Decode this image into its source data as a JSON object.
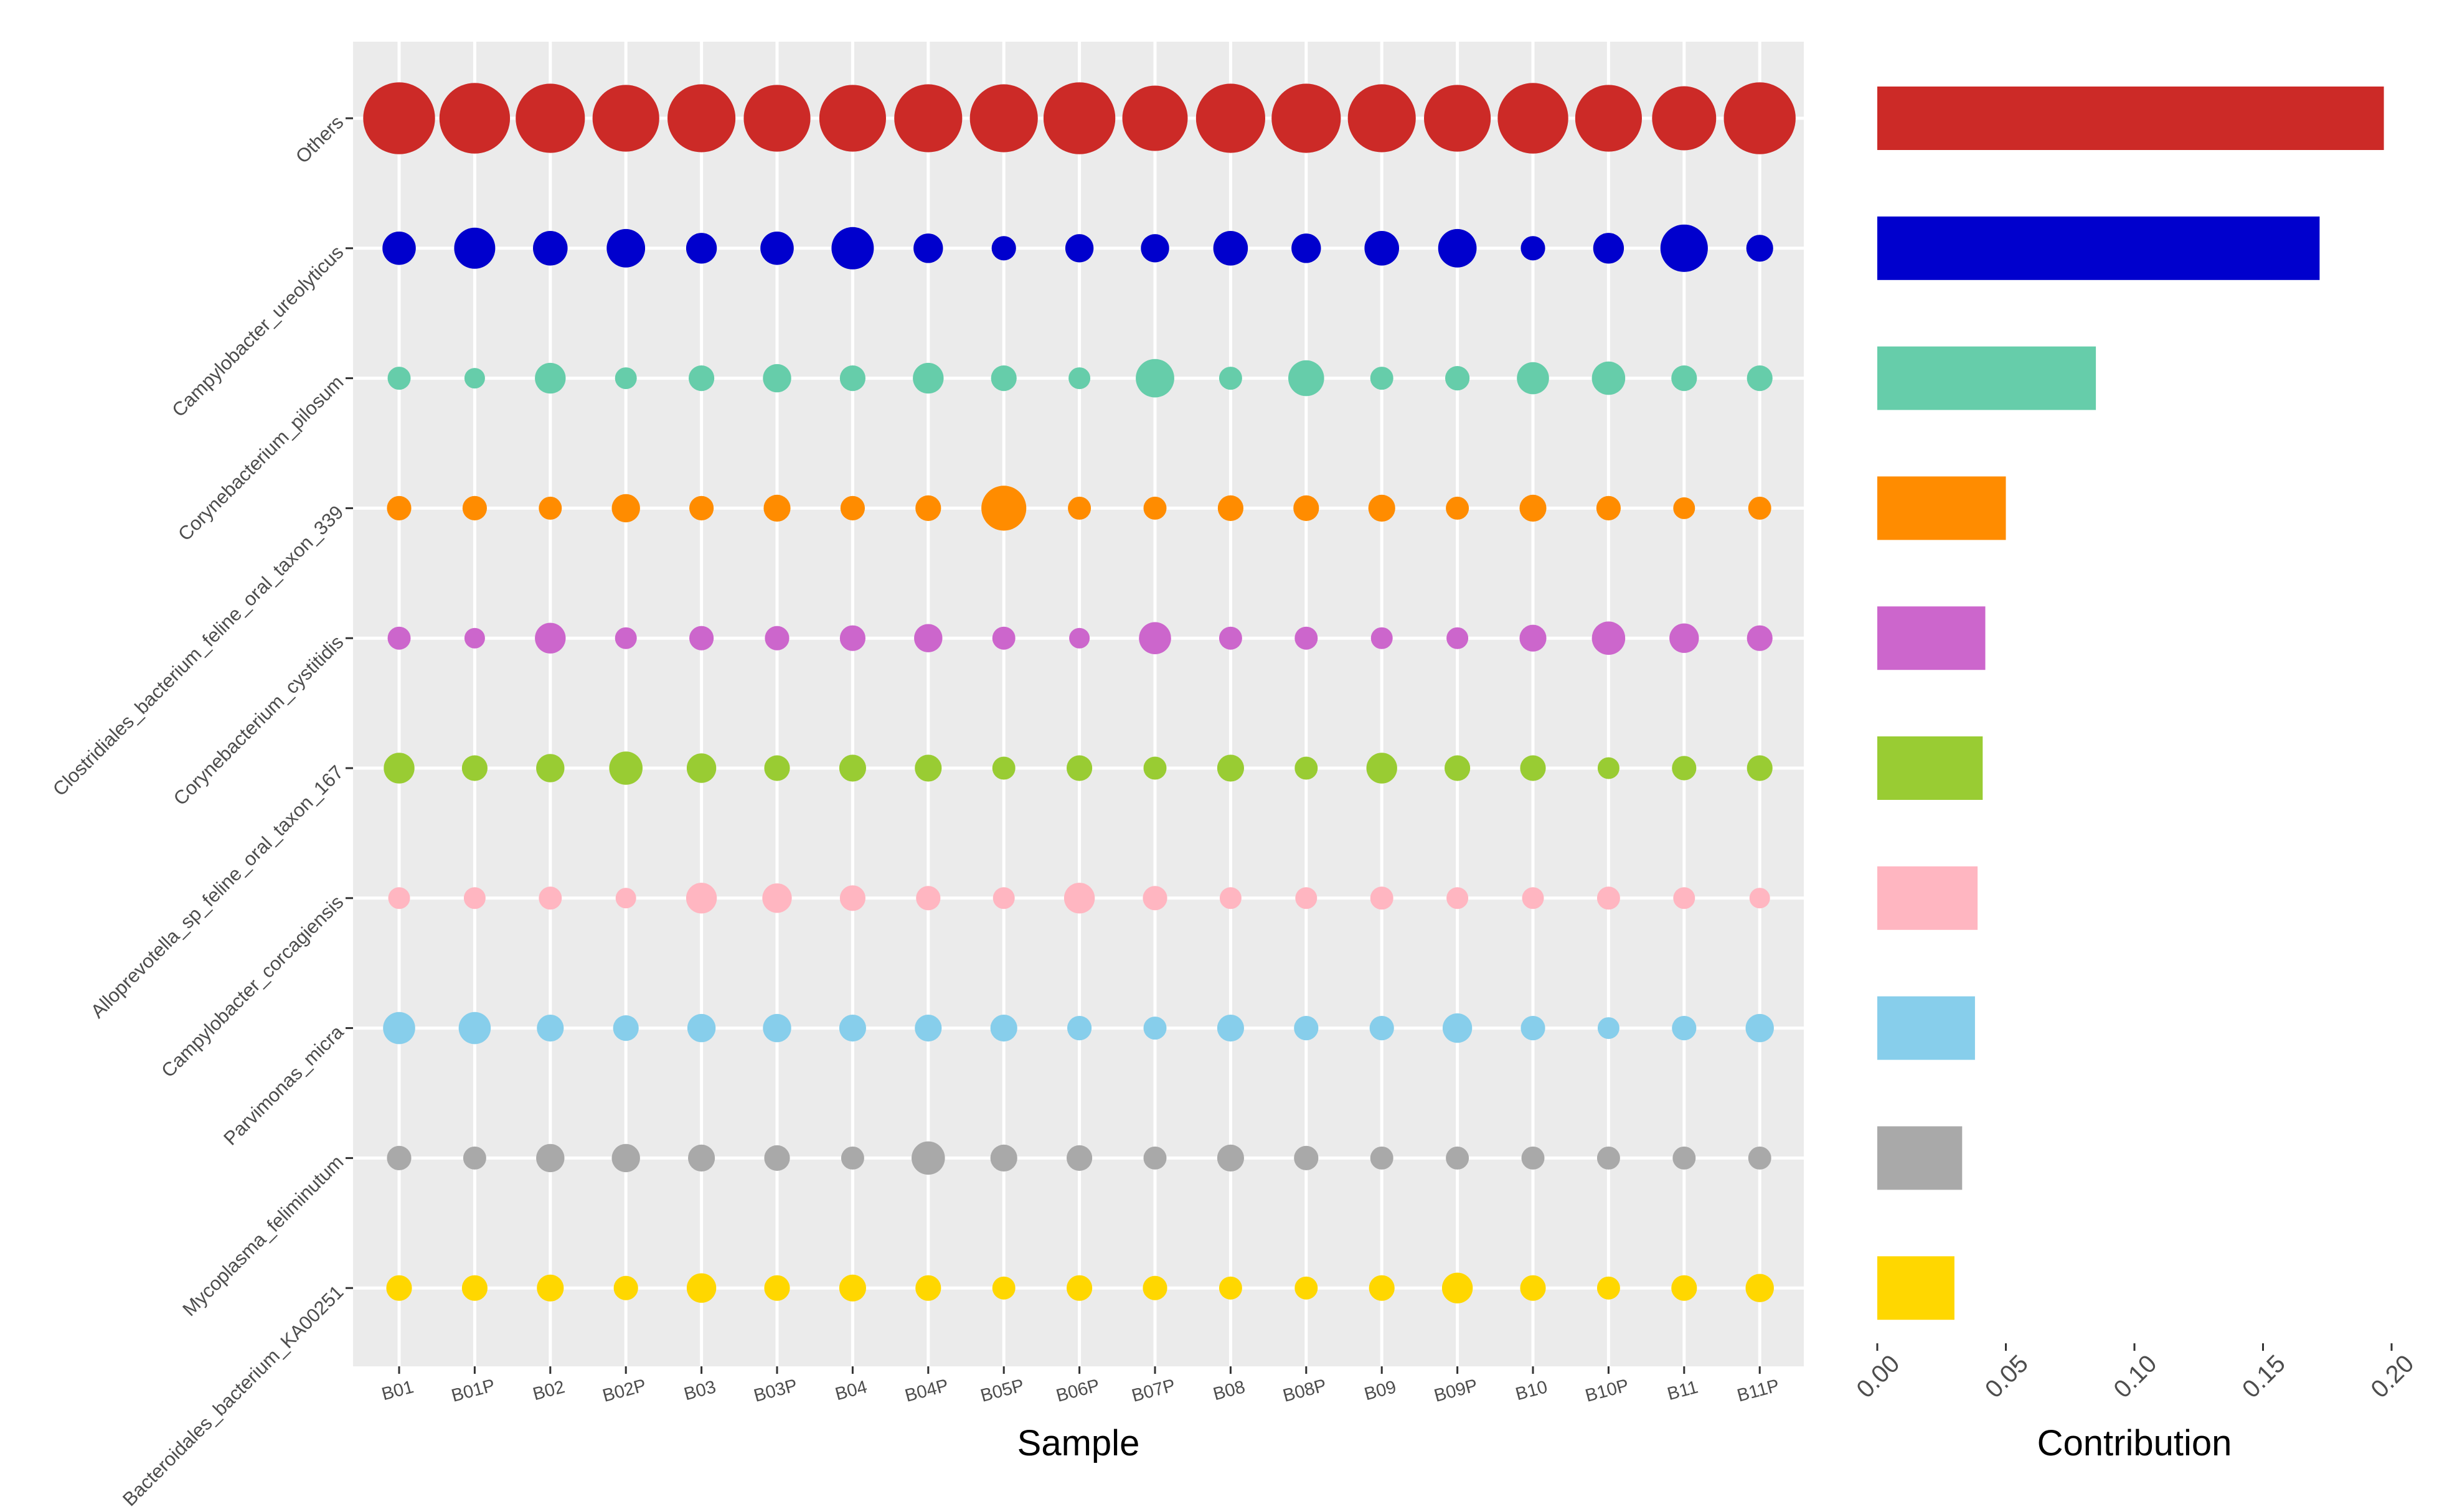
{
  "chart_data": [
    {
      "type": "scatter",
      "subtype": "bubble-matrix",
      "xlabel": "Sample",
      "ylabel": "",
      "x_categories": [
        "B01",
        "B01P",
        "B02",
        "B02P",
        "B03",
        "B03P",
        "B04",
        "B04P",
        "B05P",
        "B06P",
        "B07P",
        "B08",
        "B08P",
        "B09",
        "B09P",
        "B10",
        "B10P",
        "B11",
        "B11P"
      ],
      "y_categories": [
        "Others",
        "Campylobacter_ureolyticus",
        "Corynebacterium_pilosum",
        "Clostridiales_bacterium_feline_oral_taxon_339",
        "Corynebacterium_cystitidis",
        "Alloprevotella_sp_feline_oral_taxon_167",
        "Campylobacter_corcagiensis",
        "Parvimonas_micra",
        "Mycoplasma_feliminutum",
        "Bacteroidales_bacterium_KA00251"
      ],
      "grid": true,
      "legend": "none",
      "series": [
        {
          "color": "#CC2A27",
          "sizes": [
            5.6,
            5.5,
            5.4,
            5.2,
            5.3,
            5.2,
            5.2,
            5.3,
            5.3,
            5.6,
            5.1,
            5.4,
            5.4,
            5.3,
            5.2,
            5.5,
            5.2,
            5.0,
            5.6
          ]
        },
        {
          "color": "#0000CD",
          "sizes": [
            2.6,
            3.2,
            2.7,
            3.0,
            2.4,
            2.6,
            3.3,
            2.3,
            1.9,
            2.2,
            2.2,
            2.7,
            2.3,
            2.7,
            3.0,
            1.9,
            2.4,
            3.7,
            2.1
          ]
        },
        {
          "color": "#66CDAA",
          "sizes": [
            1.8,
            1.6,
            2.4,
            1.7,
            2.0,
            2.2,
            2.0,
            2.4,
            2.0,
            1.7,
            3.0,
            1.8,
            2.8,
            1.8,
            1.9,
            2.5,
            2.6,
            2.0,
            2.0
          ]
        },
        {
          "color": "#FF8C00",
          "sizes": [
            1.9,
            1.9,
            1.8,
            2.2,
            1.9,
            2.1,
            1.9,
            2.0,
            3.5,
            1.8,
            1.8,
            2.0,
            2.0,
            2.1,
            1.8,
            2.1,
            1.9,
            1.7,
            1.8
          ]
        },
        {
          "color": "#CC66CC",
          "sizes": [
            1.8,
            1.6,
            2.4,
            1.7,
            1.9,
            1.9,
            2.0,
            2.2,
            1.8,
            1.6,
            2.5,
            1.8,
            1.8,
            1.7,
            1.7,
            2.1,
            2.6,
            2.3,
            2.0
          ]
        },
        {
          "color": "#99CC33",
          "sizes": [
            2.4,
            2.0,
            2.2,
            2.6,
            2.3,
            2.0,
            2.1,
            2.1,
            1.8,
            2.0,
            1.8,
            2.1,
            1.8,
            2.4,
            2.0,
            2.0,
            1.7,
            1.9,
            2.0
          ]
        },
        {
          "color": "#FFB6C1",
          "sizes": [
            1.7,
            1.7,
            1.8,
            1.6,
            2.4,
            2.3,
            2.0,
            1.9,
            1.7,
            2.4,
            1.9,
            1.7,
            1.7,
            1.8,
            1.7,
            1.7,
            1.8,
            1.7,
            1.6
          ]
        },
        {
          "color": "#87CEEB",
          "sizes": [
            2.5,
            2.5,
            2.1,
            2.0,
            2.2,
            2.2,
            2.1,
            2.1,
            2.1,
            1.9,
            1.8,
            2.1,
            1.9,
            1.9,
            2.3,
            1.9,
            1.7,
            1.9,
            2.2
          ]
        },
        {
          "color": "#A9A9A9",
          "sizes": [
            1.9,
            1.8,
            2.2,
            2.2,
            2.1,
            2.0,
            1.8,
            2.6,
            2.1,
            2.0,
            1.8,
            2.1,
            1.9,
            1.8,
            1.8,
            1.8,
            1.8,
            1.8,
            1.8
          ]
        },
        {
          "color": "#FFD700",
          "sizes": [
            2.0,
            2.0,
            2.1,
            1.9,
            2.3,
            2.0,
            2.1,
            2.0,
            1.8,
            2.0,
            1.9,
            1.8,
            1.8,
            2.0,
            2.4,
            2.0,
            1.8,
            2.0,
            2.2
          ]
        }
      ]
    },
    {
      "type": "bar",
      "orientation": "horizontal",
      "xlabel": "Contribution",
      "ylabel": "",
      "categories": [
        "Others",
        "Campylobacter_ureolyticus",
        "Corynebacterium_pilosum",
        "Clostridiales_bacterium_feline_oral_taxon_339",
        "Corynebacterium_cystitidis",
        "Alloprevotella_sp_feline_oral_taxon_167",
        "Campylobacter_corcagiensis",
        "Parvimonas_micra",
        "Mycoplasma_feliminutum",
        "Bacteroidales_bacterium_KA00251"
      ],
      "values": [
        0.197,
        0.172,
        0.085,
        0.05,
        0.042,
        0.041,
        0.039,
        0.038,
        0.033,
        0.03
      ],
      "colors": [
        "#CC2A27",
        "#0000CD",
        "#66CDAA",
        "#FF8C00",
        "#CC66CC",
        "#99CC33",
        "#FFB6C1",
        "#87CEEB",
        "#A9A9A9",
        "#FFD700"
      ],
      "xlim": [
        0,
        0.2
      ],
      "x_ticks": [
        "0.00",
        "0.05",
        "0.10",
        "0.15",
        "0.20"
      ],
      "grid": false,
      "legend": "none"
    }
  ]
}
